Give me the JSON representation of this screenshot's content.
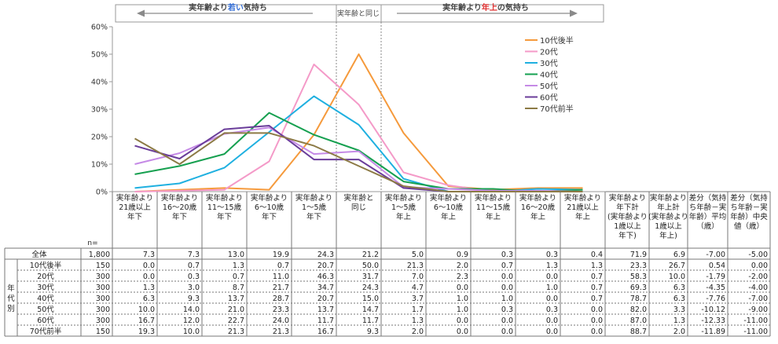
{
  "banner": {
    "left_prefix": "実年齢より",
    "left_em": "若い",
    "left_suffix": "気持ち",
    "middle": "実年齢と同じ",
    "right_prefix": "実年齢より",
    "right_em": "年上",
    "right_suffix": "の気持ち",
    "left_em_color": "#2f6bd6",
    "right_em_color": "#e03030"
  },
  "n_label": "n=",
  "chart_data": {
    "type": "line",
    "ylim": [
      0,
      60
    ],
    "yticks": [
      "0%",
      "10%",
      "20%",
      "30%",
      "40%",
      "50%",
      "60%"
    ],
    "legend_position": "top-right",
    "categories": [
      "実年齢より\n21歳以上\n年下",
      "実年齢より\n16～20歳\n年下",
      "実年齢より\n11～15歳\n年下",
      "実年齢より\n6～10歳\n年下",
      "実年齢より\n1～5歳\n年下",
      "実年齢と\n同じ",
      "実年齢より\n1～5歳\n年上",
      "実年齢より\n6～10歳\n年上",
      "実年齢より\n11～15歳\n年上",
      "実年齢より\n16～20歳\n年上",
      "実年齢より\n21歳以上\n年上"
    ],
    "series": [
      {
        "name": "10代後半",
        "color": "#f59a3c",
        "values": [
          0.0,
          0.7,
          1.3,
          0.7,
          20.7,
          50.0,
          21.3,
          2.0,
          0.7,
          1.3,
          1.3
        ]
      },
      {
        "name": "20代",
        "color": "#f49ac8",
        "values": [
          0.0,
          0.3,
          0.7,
          11.0,
          46.3,
          31.7,
          7.0,
          2.3,
          0.0,
          0.0,
          0.7
        ]
      },
      {
        "name": "30代",
        "color": "#1fb0e0",
        "values": [
          1.3,
          3.0,
          8.7,
          21.7,
          34.7,
          24.3,
          4.7,
          0.0,
          0.0,
          1.0,
          0.7
        ]
      },
      {
        "name": "40代",
        "color": "#16a050",
        "values": [
          6.3,
          9.3,
          13.7,
          28.7,
          20.7,
          15.0,
          3.7,
          1.0,
          1.0,
          0.0,
          0.7
        ]
      },
      {
        "name": "50代",
        "color": "#c58ae6",
        "values": [
          10.0,
          14.0,
          21.0,
          23.3,
          13.7,
          14.7,
          1.7,
          1.0,
          0.3,
          0.3,
          0.0
        ]
      },
      {
        "name": "60代",
        "color": "#6a3d9a",
        "values": [
          16.7,
          12.0,
          22.7,
          24.0,
          11.7,
          11.7,
          1.3,
          0.0,
          0.0,
          0.0,
          0.0
        ]
      },
      {
        "name": "70代前半",
        "color": "#8c7a45",
        "values": [
          19.3,
          10.0,
          21.3,
          21.3,
          16.7,
          9.3,
          2.0,
          0.0,
          0.0,
          0.0,
          0.0
        ]
      }
    ]
  },
  "table": {
    "extra_headers": [
      "実年齢より\n年下計\n(実年齢より\n1歳以上\n年下)",
      "実年齢より\n年上計\n(実年齢より\n1歳以上\n年上)",
      "差分（気持\nち年齢－実\n年齢）平均\n（歳）",
      "差分（気持\nち年齢－実\n年齢）中央\n値（歳）"
    ],
    "side_label": "年代別",
    "rows": [
      {
        "label": "全体",
        "n": "1,800",
        "vals": [
          "7.3",
          "7.3",
          "13.0",
          "19.9",
          "24.3",
          "21.2",
          "5.0",
          "0.9",
          "0.3",
          "0.3",
          "0.4"
        ],
        "extra": [
          "71.9",
          "6.9",
          "-7.00",
          "-5.00"
        ]
      },
      {
        "label": "10代後半",
        "n": "150",
        "vals": [
          "0.0",
          "0.7",
          "1.3",
          "0.7",
          "20.7",
          "50.0",
          "21.3",
          "2.0",
          "0.7",
          "1.3",
          "1.3"
        ],
        "extra": [
          "23.3",
          "26.7",
          "0.54",
          "0.00"
        ]
      },
      {
        "label": "20代",
        "n": "300",
        "vals": [
          "0.0",
          "0.3",
          "0.7",
          "11.0",
          "46.3",
          "31.7",
          "7.0",
          "2.3",
          "0.0",
          "0.0",
          "0.7"
        ],
        "extra": [
          "58.3",
          "10.0",
          "-1.79",
          "-2.00"
        ]
      },
      {
        "label": "30代",
        "n": "300",
        "vals": [
          "1.3",
          "3.0",
          "8.7",
          "21.7",
          "34.7",
          "24.3",
          "4.7",
          "0.0",
          "0.0",
          "1.0",
          "0.7"
        ],
        "extra": [
          "69.3",
          "6.3",
          "-4.35",
          "-4.00"
        ]
      },
      {
        "label": "40代",
        "n": "300",
        "vals": [
          "6.3",
          "9.3",
          "13.7",
          "28.7",
          "20.7",
          "15.0",
          "3.7",
          "1.0",
          "1.0",
          "0.0",
          "0.7"
        ],
        "extra": [
          "78.7",
          "6.3",
          "-7.76",
          "-7.00"
        ]
      },
      {
        "label": "50代",
        "n": "300",
        "vals": [
          "10.0",
          "14.0",
          "21.0",
          "23.3",
          "13.7",
          "14.7",
          "1.7",
          "1.0",
          "0.3",
          "0.3",
          "0.0"
        ],
        "extra": [
          "82.0",
          "3.3",
          "-10.12",
          "-9.00"
        ]
      },
      {
        "label": "60代",
        "n": "300",
        "vals": [
          "16.7",
          "12.0",
          "22.7",
          "24.0",
          "11.7",
          "11.7",
          "1.3",
          "0.0",
          "0.0",
          "0.0",
          "0.0"
        ],
        "extra": [
          "87.0",
          "1.3",
          "-12.33",
          "-11.00"
        ]
      },
      {
        "label": "70代前半",
        "n": "150",
        "vals": [
          "19.3",
          "10.0",
          "21.3",
          "21.3",
          "16.7",
          "9.3",
          "2.0",
          "0.0",
          "0.0",
          "0.0",
          "0.0"
        ],
        "extra": [
          "88.7",
          "2.0",
          "-11.89",
          "-11.00"
        ]
      }
    ]
  }
}
